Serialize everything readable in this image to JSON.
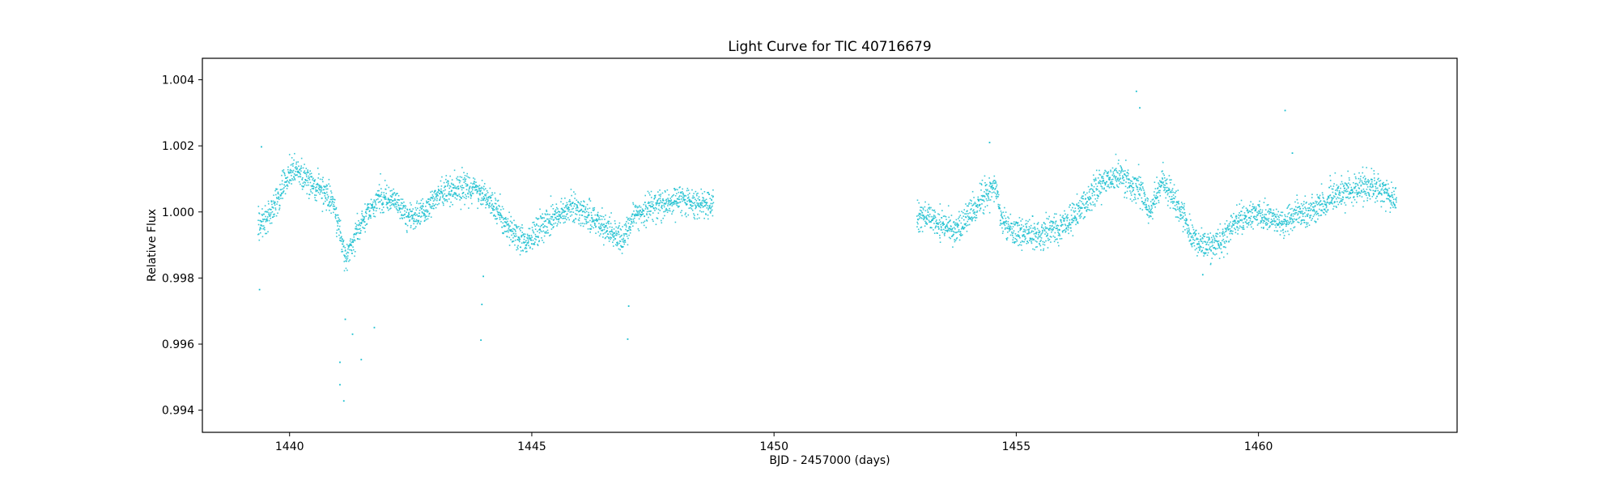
{
  "chart_data": {
    "type": "scatter",
    "title": "Light Curve for TIC 40716679",
    "xlabel": "BJD - 2457000 (days)",
    "ylabel": "Relative Flux",
    "xlim": [
      1438.2,
      1464.1
    ],
    "ylim": [
      0.99333,
      1.00465
    ],
    "xticks": [
      1440,
      1445,
      1450,
      1455,
      1460
    ],
    "xtick_labels": [
      "1440",
      "1445",
      "1450",
      "1455",
      "1460"
    ],
    "yticks": [
      0.994,
      0.996,
      0.998,
      1.0,
      1.002,
      1.004
    ],
    "ytick_labels": [
      "0.994",
      "0.996",
      "0.998",
      "1.000",
      "1.002",
      "1.004"
    ],
    "grid": false,
    "legend": "none",
    "series": [
      {
        "color": "#17becf",
        "marker": "dot",
        "segments": [
          {
            "x_range": [
              1439.35,
              1448.75
            ],
            "trend": [
              [
                1439.35,
                0.99965
              ],
              [
                1439.5,
                0.99975
              ],
              [
                1439.7,
                1.00015
              ],
              [
                1439.9,
                1.0009
              ],
              [
                1440.05,
                1.0013
              ],
              [
                1440.3,
                1.00105
              ],
              [
                1440.6,
                1.00075
              ],
              [
                1440.9,
                1.00025
              ],
              [
                1441.05,
                0.99935
              ],
              [
                1441.15,
                0.9985
              ],
              [
                1441.35,
                0.99925
              ],
              [
                1441.6,
                0.99995
              ],
              [
                1441.85,
                1.00045
              ],
              [
                1442.15,
                1.00035
              ],
              [
                1442.45,
                0.99985
              ],
              [
                1442.8,
                1.0
              ],
              [
                1443.1,
                1.00055
              ],
              [
                1443.5,
                1.0008
              ],
              [
                1443.85,
                1.0007
              ],
              [
                1444.2,
                1.0002
              ],
              [
                1444.55,
                0.99945
              ],
              [
                1444.85,
                0.9991
              ],
              [
                1445.15,
                0.99945
              ],
              [
                1445.5,
                0.9999
              ],
              [
                1445.85,
                1.00015
              ],
              [
                1446.2,
                0.9999
              ],
              [
                1446.6,
                0.99945
              ],
              [
                1446.9,
                0.9992
              ],
              [
                1447.1,
                0.99985
              ],
              [
                1447.5,
                1.0002
              ],
              [
                1448.0,
                1.00035
              ],
              [
                1448.4,
                1.0003
              ],
              [
                1448.75,
                1.00025
              ]
            ],
            "scatter": 0.00022,
            "count": 2300
          },
          {
            "x_range": [
              1452.95,
              1462.85
            ],
            "trend": [
              [
                1452.95,
                0.99985
              ],
              [
                1453.3,
                0.9998
              ],
              [
                1453.7,
                0.99945
              ],
              [
                1454.0,
                0.9998
              ],
              [
                1454.3,
                1.00035
              ],
              [
                1454.55,
                1.00085
              ],
              [
                1454.7,
                0.99975
              ],
              [
                1455.0,
                0.99935
              ],
              [
                1455.5,
                0.9993
              ],
              [
                1455.9,
                0.99955
              ],
              [
                1456.3,
                1.00005
              ],
              [
                1456.7,
                1.0008
              ],
              [
                1457.1,
                1.0011
              ],
              [
                1457.5,
                1.0008
              ],
              [
                1457.75,
                1.0
              ],
              [
                1458.0,
                1.0009
              ],
              [
                1458.3,
                1.00035
              ],
              [
                1458.6,
                0.9993
              ],
              [
                1458.95,
                0.9989
              ],
              [
                1459.3,
                0.99925
              ],
              [
                1459.6,
                0.9998
              ],
              [
                1460.0,
                0.99995
              ],
              [
                1460.4,
                0.99965
              ],
              [
                1460.8,
                0.9999
              ],
              [
                1461.2,
                1.0001
              ],
              [
                1461.6,
                1.0005
              ],
              [
                1462.1,
                1.0008
              ],
              [
                1462.5,
                1.0007
              ],
              [
                1462.85,
                1.00035
              ]
            ],
            "scatter": 0.00022,
            "count": 2400
          }
        ],
        "notable_points": [
          {
            "x": 1439.42,
            "y": 1.00197
          },
          {
            "x": 1441.04,
            "y": 0.99545
          },
          {
            "x": 1441.04,
            "y": 0.99477
          },
          {
            "x": 1441.12,
            "y": 0.99428
          },
          {
            "x": 1441.48,
            "y": 0.99553
          },
          {
            "x": 1441.3,
            "y": 0.9963
          },
          {
            "x": 1441.15,
            "y": 0.99675
          },
          {
            "x": 1441.75,
            "y": 0.9965
          },
          {
            "x": 1443.95,
            "y": 0.99612
          },
          {
            "x": 1443.97,
            "y": 0.9972
          },
          {
            "x": 1444.0,
            "y": 0.99805
          },
          {
            "x": 1446.98,
            "y": 0.99615
          },
          {
            "x": 1447.0,
            "y": 0.99715
          },
          {
            "x": 1439.38,
            "y": 0.99765
          },
          {
            "x": 1457.48,
            "y": 1.00365
          },
          {
            "x": 1457.55,
            "y": 1.00315
          },
          {
            "x": 1460.55,
            "y": 1.00307
          },
          {
            "x": 1460.7,
            "y": 1.00178
          },
          {
            "x": 1458.85,
            "y": 0.9981
          },
          {
            "x": 1454.45,
            "y": 1.0021
          }
        ]
      }
    ]
  }
}
